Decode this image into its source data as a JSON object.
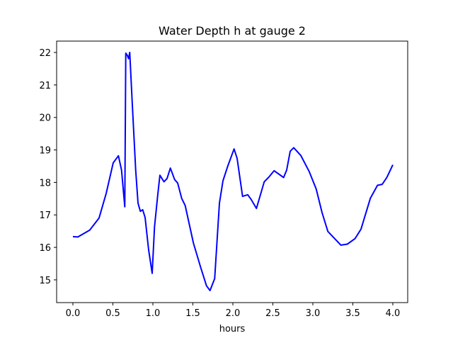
{
  "chart_data": {
    "type": "line",
    "title": "Water Depth h at gauge 2",
    "xlabel": "hours",
    "ylabel": "",
    "xlim": [
      -0.2035,
      4.186
    ],
    "ylim": [
      14.3,
      22.35
    ],
    "xticks": [
      0.0,
      0.5,
      1.0,
      1.5,
      2.0,
      2.5,
      3.0,
      3.5,
      4.0
    ],
    "xtick_labels": [
      "0.0",
      "0.5",
      "1.0",
      "1.5",
      "2.0",
      "2.5",
      "3.0",
      "3.5",
      "4.0"
    ],
    "yticks": [
      15,
      16,
      17,
      18,
      19,
      20,
      21,
      22
    ],
    "ytick_labels": [
      "15",
      "16",
      "17",
      "18",
      "19",
      "20",
      "21",
      "22"
    ],
    "grid": false,
    "series": [
      {
        "name": "h",
        "color": "#0000ff",
        "x": [
          0.0,
          0.062,
          0.21,
          0.327,
          0.416,
          0.504,
          0.569,
          0.608,
          0.649,
          0.661,
          0.681,
          0.696,
          0.711,
          0.741,
          0.785,
          0.814,
          0.843,
          0.873,
          0.903,
          0.947,
          0.991,
          1.02,
          1.059,
          1.088,
          1.139,
          1.177,
          1.219,
          1.272,
          1.31,
          1.36,
          1.404,
          1.507,
          1.596,
          1.67,
          1.714,
          1.773,
          1.832,
          1.876,
          1.935,
          2.015,
          2.053,
          2.121,
          2.186,
          2.23,
          2.295,
          2.392,
          2.445,
          2.516,
          2.635,
          2.673,
          2.717,
          2.761,
          2.85,
          2.953,
          3.042,
          3.115,
          3.188,
          3.351,
          3.431,
          3.528,
          3.602,
          3.719,
          3.808,
          3.867,
          3.927,
          4.0
        ],
        "y": [
          16.33,
          16.32,
          16.53,
          16.9,
          17.66,
          18.6,
          18.82,
          18.38,
          17.25,
          21.98,
          21.91,
          21.81,
          22.0,
          20.5,
          18.38,
          17.36,
          17.11,
          17.16,
          16.92,
          15.92,
          15.2,
          16.63,
          17.58,
          18.22,
          18.02,
          18.12,
          18.44,
          18.09,
          17.98,
          17.51,
          17.29,
          16.13,
          15.4,
          14.82,
          14.67,
          15.04,
          17.36,
          18.05,
          18.49,
          19.03,
          18.74,
          17.57,
          17.62,
          17.47,
          17.2,
          18.02,
          18.15,
          18.36,
          18.15,
          18.38,
          18.96,
          19.07,
          18.83,
          18.34,
          17.8,
          17.07,
          16.49,
          16.07,
          16.1,
          16.27,
          16.56,
          17.51,
          17.91,
          17.94,
          18.16,
          18.54
        ]
      }
    ]
  }
}
